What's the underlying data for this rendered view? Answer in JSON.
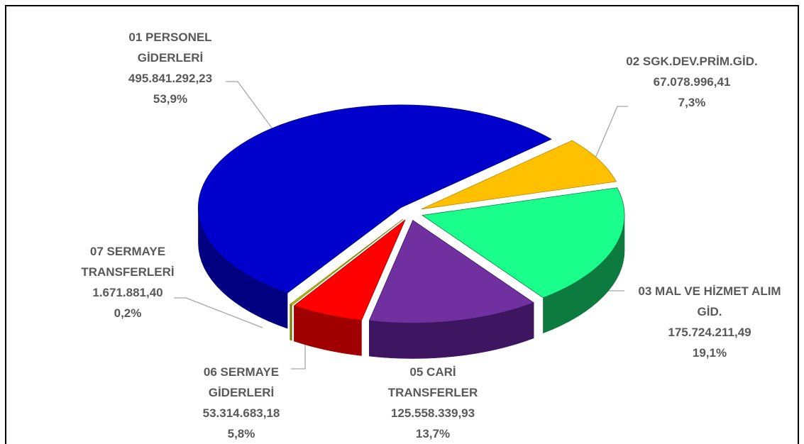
{
  "chart_data": {
    "type": "pie",
    "categories": [
      "01 PERSONEL GİDERLERİ",
      "02 SGK.DEV.PRİM.GİD.",
      "03 MAL VE HİZMET ALIM GİD.",
      "05 CARİ TRANSFERLER",
      "06 SERMAYE GİDERLERİ",
      "07 SERMAYE TRANSFERLERİ"
    ],
    "values": [
      495841292.23,
      67078996.41,
      175724211.49,
      125558339.93,
      53314683.18,
      1671881.4
    ],
    "value_labels": [
      "495.841.292,23",
      "67.078.996,41",
      "175.724.211,49",
      "125.558.339,93",
      "53.314.683,18",
      "1.671.881,40"
    ],
    "percentages": [
      53.9,
      7.3,
      19.1,
      13.7,
      5.8,
      0.2
    ],
    "percentage_labels": [
      "53,9%",
      "7,3%",
      "19,1%",
      "13,7%",
      "5,8%",
      "0,2%"
    ],
    "colors": [
      "#0000cc",
      "#ffc000",
      "#1aff8c",
      "#7030a0",
      "#ff0000",
      "#c8c800"
    ],
    "side_colors": [
      "#000080",
      "#b38600",
      "#0d7a40",
      "#3d1560",
      "#a00000",
      "#7a7a00"
    ]
  }
}
